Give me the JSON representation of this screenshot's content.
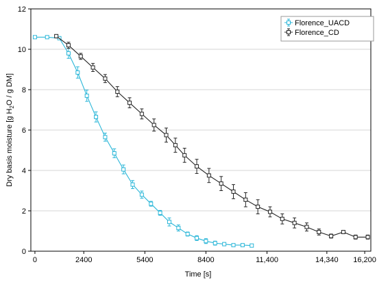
{
  "chart_data": {
    "type": "line",
    "xlabel": "Time [s]",
    "ylabel_parts": [
      "Dry basis moisture [g H",
      "2",
      "O / g DM]"
    ],
    "xlim": [
      -200,
      16500
    ],
    "ylim": [
      0,
      12
    ],
    "x_ticks": [
      0,
      2400,
      5400,
      8400,
      11400,
      14340,
      16200
    ],
    "x_tick_labels": [
      "0",
      "2400",
      "5400",
      "8400",
      "11,400",
      "14,340",
      "16,200"
    ],
    "y_ticks": [
      0,
      2,
      4,
      6,
      8,
      10,
      12
    ],
    "y_tick_labels": [
      "0",
      "2",
      "4",
      "6",
      "8",
      "10",
      "12"
    ],
    "grid": "horizontal",
    "legend_position": "top-right",
    "series": [
      {
        "name": "Florence_UACD",
        "color": "#29b6d8",
        "x": [
          0,
          600,
          1200,
          1650,
          2100,
          2550,
          3000,
          3450,
          3900,
          4350,
          4800,
          5250,
          5700,
          6150,
          6600,
          7050,
          7500,
          7950,
          8400,
          8850,
          9300,
          9750,
          10200,
          10650
        ],
        "y": [
          10.6,
          10.6,
          10.55,
          9.8,
          8.85,
          7.7,
          6.65,
          5.65,
          4.85,
          4.05,
          3.3,
          2.8,
          2.35,
          1.9,
          1.45,
          1.15,
          0.85,
          0.65,
          0.5,
          0.4,
          0.35,
          0.3,
          0.3,
          0.28
        ],
        "err": [
          0.05,
          0.05,
          0.05,
          0.25,
          0.28,
          0.28,
          0.25,
          0.2,
          0.22,
          0.22,
          0.2,
          0.18,
          0.12,
          0.12,
          0.2,
          0.15,
          0.1,
          0.12,
          0.12,
          0.1,
          0.08,
          0.05,
          0.05,
          0.05
        ]
      },
      {
        "name": "Florence_CD",
        "color": "#222222",
        "x": [
          1050,
          1650,
          2250,
          2850,
          3450,
          4050,
          4650,
          5250,
          5850,
          6450,
          6900,
          7350,
          7950,
          8550,
          9150,
          9750,
          10350,
          10950,
          11550,
          12150,
          12750,
          13350,
          13950,
          14550,
          15150,
          15750,
          16350
        ],
        "y": [
          10.65,
          10.2,
          9.65,
          9.1,
          8.55,
          7.9,
          7.35,
          6.8,
          6.25,
          5.75,
          5.25,
          4.75,
          4.2,
          3.75,
          3.35,
          2.95,
          2.55,
          2.2,
          1.95,
          1.6,
          1.4,
          1.2,
          0.95,
          0.75,
          0.95,
          0.7,
          0.7
        ],
        "err": [
          0.08,
          0.15,
          0.15,
          0.2,
          0.2,
          0.25,
          0.25,
          0.25,
          0.3,
          0.35,
          0.35,
          0.35,
          0.35,
          0.35,
          0.35,
          0.35,
          0.35,
          0.35,
          0.25,
          0.25,
          0.25,
          0.2,
          0.15,
          0.1,
          0.08,
          0.1,
          0.1
        ]
      }
    ]
  }
}
